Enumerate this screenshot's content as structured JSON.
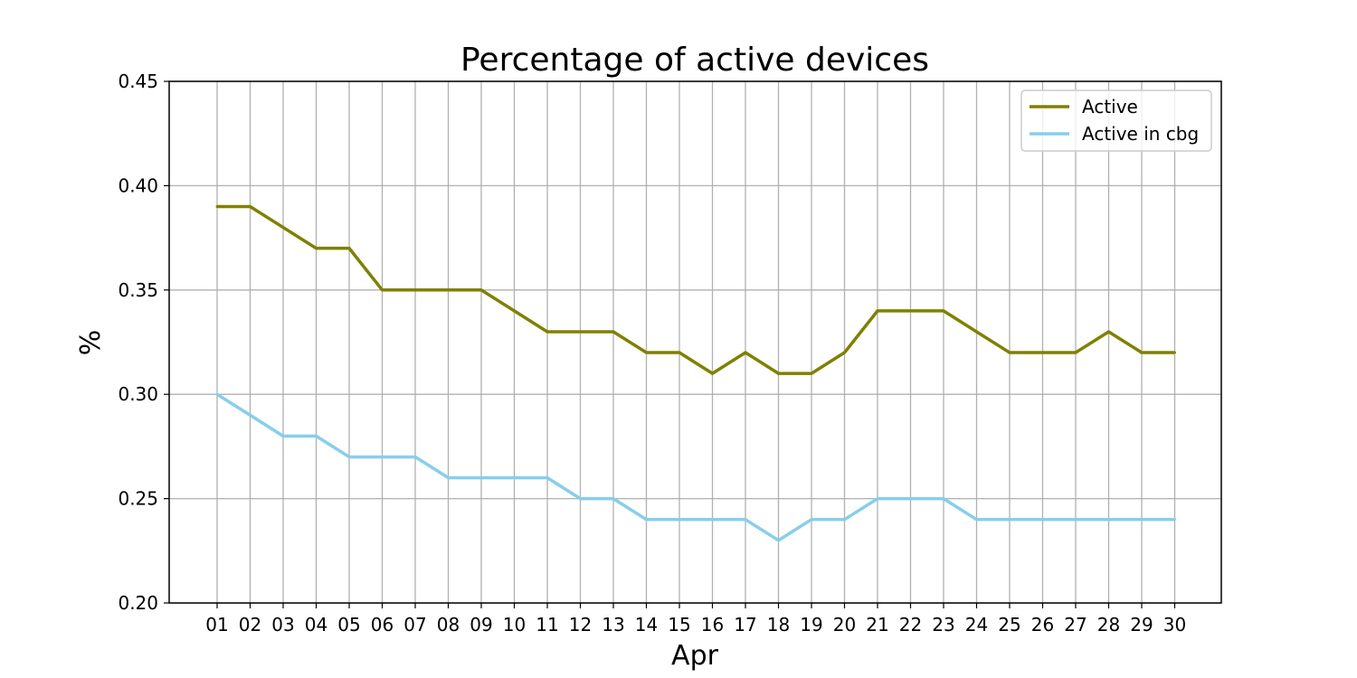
{
  "chart_data": {
    "type": "line",
    "title": "Percentage of active devices",
    "xlabel": "Apr",
    "ylabel": "%",
    "x": [
      "01",
      "02",
      "03",
      "04",
      "05",
      "06",
      "07",
      "08",
      "09",
      "10",
      "11",
      "12",
      "13",
      "14",
      "15",
      "16",
      "17",
      "18",
      "19",
      "20",
      "21",
      "22",
      "23",
      "24",
      "25",
      "26",
      "27",
      "28",
      "29",
      "30"
    ],
    "ylim": [
      0.2,
      0.45
    ],
    "yticks": [
      "0.20",
      "0.25",
      "0.30",
      "0.35",
      "0.40",
      "0.45"
    ],
    "grid": true,
    "legend_position": "top-right",
    "series": [
      {
        "name": "Active",
        "color": "#808000",
        "values": [
          0.39,
          0.39,
          0.38,
          0.37,
          0.37,
          0.35,
          0.35,
          0.35,
          0.35,
          0.34,
          0.33,
          0.33,
          0.33,
          0.32,
          0.32,
          0.31,
          0.32,
          0.31,
          0.31,
          0.32,
          0.34,
          0.34,
          0.34,
          0.33,
          0.32,
          0.32,
          0.32,
          0.33,
          0.32,
          0.32
        ]
      },
      {
        "name": "Active in cbg",
        "color": "#87ceeb",
        "values": [
          0.3,
          0.29,
          0.28,
          0.28,
          0.27,
          0.27,
          0.27,
          0.26,
          0.26,
          0.26,
          0.26,
          0.25,
          0.25,
          0.24,
          0.24,
          0.24,
          0.24,
          0.23,
          0.24,
          0.24,
          0.25,
          0.25,
          0.25,
          0.24,
          0.24,
          0.24,
          0.24,
          0.24,
          0.24,
          0.24
        ]
      }
    ]
  }
}
